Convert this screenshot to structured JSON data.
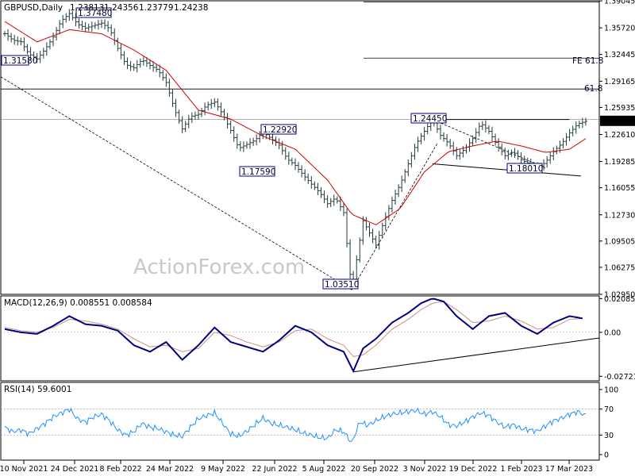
{
  "chart_data": [
    {
      "type": "line",
      "panel": "price",
      "title": "GBPUSD,Daily",
      "ohlc": [
        "1.23813",
        "1.24356",
        "1.23779",
        "1.24238"
      ],
      "last_price": "1.24238",
      "ylim": [
        1.0295,
        1.3905
      ],
      "y_ticks": [
        "1.39045",
        "1.35720",
        "1.32445",
        "1.29165",
        "1.25935",
        "1.22610",
        "1.19285",
        "1.16055",
        "1.12730",
        "1.09505",
        "1.06275",
        "1.02950"
      ],
      "x_ticks": [
        "10 Nov 2021",
        "24 Dec 2021",
        "8 Feb 2022",
        "24 Mar 2022",
        "9 May 2022",
        "22 Jun 2022",
        "5 Aug 2022",
        "20 Sep 2022",
        "3 Nov 2022",
        "19 Dec 2022",
        "1 Feb 2023",
        "17 Mar 2023"
      ],
      "price_series": [
        [
          0,
          1.35
        ],
        [
          5,
          1.342
        ],
        [
          10,
          1.34
        ],
        [
          15,
          1.325
        ],
        [
          20,
          1.319
        ],
        [
          25,
          1.331
        ],
        [
          30,
          1.346
        ],
        [
          35,
          1.366
        ],
        [
          40,
          1.3748
        ],
        [
          45,
          1.362
        ],
        [
          50,
          1.357
        ],
        [
          55,
          1.36
        ],
        [
          60,
          1.363
        ],
        [
          65,
          1.356
        ],
        [
          70,
          1.332
        ],
        [
          75,
          1.312
        ],
        [
          80,
          1.308
        ],
        [
          85,
          1.318
        ],
        [
          90,
          1.311
        ],
        [
          95,
          1.305
        ],
        [
          100,
          1.29
        ],
        [
          105,
          1.258
        ],
        [
          110,
          1.233
        ],
        [
          115,
          1.248
        ],
        [
          120,
          1.251
        ],
        [
          125,
          1.262
        ],
        [
          130,
          1.266
        ],
        [
          135,
          1.251
        ],
        [
          140,
          1.231
        ],
        [
          145,
          1.209
        ],
        [
          150,
          1.214
        ],
        [
          155,
          1.219
        ],
        [
          160,
          1.2292
        ],
        [
          165,
          1.221
        ],
        [
          170,
          1.213
        ],
        [
          175,
          1.196
        ],
        [
          180,
          1.188
        ],
        [
          185,
          1.176
        ],
        [
          190,
          1.165
        ],
        [
          195,
          1.155
        ],
        [
          200,
          1.141
        ],
        [
          205,
          1.148
        ],
        [
          210,
          1.13
        ],
        [
          215,
          1.0351
        ],
        [
          218,
          1.072
        ],
        [
          222,
          1.12
        ],
        [
          226,
          1.105
        ],
        [
          230,
          1.09
        ],
        [
          235,
          1.12
        ],
        [
          240,
          1.145
        ],
        [
          245,
          1.165
        ],
        [
          250,
          1.19
        ],
        [
          255,
          1.215
        ],
        [
          260,
          1.23
        ],
        [
          265,
          1.2445
        ],
        [
          270,
          1.225
        ],
        [
          275,
          1.215
        ],
        [
          280,
          1.2
        ],
        [
          285,
          1.208
        ],
        [
          290,
          1.221
        ],
        [
          295,
          1.24
        ],
        [
          300,
          1.23
        ],
        [
          305,
          1.213
        ],
        [
          310,
          1.2
        ],
        [
          315,
          1.205
        ],
        [
          320,
          1.195
        ],
        [
          325,
          1.19
        ],
        [
          330,
          1.184
        ],
        [
          335,
          1.192
        ],
        [
          340,
          1.205
        ],
        [
          345,
          1.215
        ],
        [
          350,
          1.228
        ],
        [
          355,
          1.239
        ],
        [
          360,
          1.2424
        ]
      ],
      "ma_series": [
        [
          0,
          1.365
        ],
        [
          20,
          1.34
        ],
        [
          40,
          1.355
        ],
        [
          60,
          1.35
        ],
        [
          80,
          1.33
        ],
        [
          100,
          1.305
        ],
        [
          120,
          1.256
        ],
        [
          140,
          1.245
        ],
        [
          160,
          1.224
        ],
        [
          180,
          1.208
        ],
        [
          200,
          1.17
        ],
        [
          215,
          1.128
        ],
        [
          230,
          1.115
        ],
        [
          245,
          1.135
        ],
        [
          260,
          1.18
        ],
        [
          275,
          1.205
        ],
        [
          290,
          1.212
        ],
        [
          305,
          1.218
        ],
        [
          320,
          1.212
        ],
        [
          335,
          1.204
        ],
        [
          350,
          1.208
        ],
        [
          360,
          1.221
        ]
      ],
      "annotations": [
        {
          "text": "1.37480",
          "x": 40,
          "y": 1.3748
        },
        {
          "text": "1.31580",
          "x": 0,
          "y": 1.3158
        },
        {
          "text": "1.22920",
          "x": 160,
          "y": 1.2292
        },
        {
          "text": "1.17590",
          "x": 148,
          "y": 1.1759
        },
        {
          "text": "1.03510",
          "x": 215,
          "y": 1.0351
        },
        {
          "text": "1.24450",
          "x": 265,
          "y": 1.2445
        },
        {
          "text": "1.18010",
          "x": 325,
          "y": 1.1801
        },
        {
          "text": "FE 61.8",
          "x": 360,
          "y": 1.32
        },
        {
          "text": "61.8",
          "x": 360,
          "y": 1.282
        }
      ],
      "watermark": "ActionForex.com"
    },
    {
      "type": "line",
      "panel": "macd",
      "title": "MACD(12,26,9) 0.008551 0.008584",
      "ylim": [
        -0.0295,
        0.0225
      ],
      "y_ticks": [
        "0.020858",
        "0.00",
        "-0.027213"
      ],
      "macd": [
        [
          0,
          0.002
        ],
        [
          10,
          0.0
        ],
        [
          20,
          -0.001
        ],
        [
          30,
          0.004
        ],
        [
          40,
          0.01
        ],
        [
          50,
          0.005
        ],
        [
          60,
          0.004
        ],
        [
          70,
          0.001
        ],
        [
          80,
          -0.008
        ],
        [
          90,
          -0.012
        ],
        [
          100,
          -0.006
        ],
        [
          110,
          -0.017
        ],
        [
          120,
          -0.008
        ],
        [
          130,
          0.003
        ],
        [
          140,
          -0.006
        ],
        [
          150,
          -0.009
        ],
        [
          160,
          -0.012
        ],
        [
          170,
          -0.005
        ],
        [
          180,
          0.004
        ],
        [
          190,
          0.0
        ],
        [
          200,
          -0.008
        ],
        [
          210,
          -0.012
        ],
        [
          216,
          -0.024
        ],
        [
          222,
          -0.01
        ],
        [
          230,
          -0.004
        ],
        [
          240,
          0.006
        ],
        [
          250,
          0.012
        ],
        [
          258,
          0.018
        ],
        [
          265,
          0.021
        ],
        [
          272,
          0.019
        ],
        [
          280,
          0.01
        ],
        [
          290,
          0.002
        ],
        [
          300,
          0.01
        ],
        [
          310,
          0.012
        ],
        [
          320,
          0.004
        ],
        [
          330,
          -0.001
        ],
        [
          340,
          0.006
        ],
        [
          350,
          0.01
        ],
        [
          358,
          0.0086
        ]
      ],
      "signal": [
        [
          0,
          0.003
        ],
        [
          10,
          0.001
        ],
        [
          20,
          0.0
        ],
        [
          30,
          0.003
        ],
        [
          40,
          0.008
        ],
        [
          50,
          0.007
        ],
        [
          60,
          0.005
        ],
        [
          70,
          0.002
        ],
        [
          80,
          -0.004
        ],
        [
          90,
          -0.009
        ],
        [
          100,
          -0.008
        ],
        [
          110,
          -0.012
        ],
        [
          120,
          -0.01
        ],
        [
          130,
          0.0
        ],
        [
          140,
          -0.002
        ],
        [
          150,
          -0.006
        ],
        [
          160,
          -0.009
        ],
        [
          170,
          -0.006
        ],
        [
          180,
          0.001
        ],
        [
          190,
          0.002
        ],
        [
          200,
          -0.004
        ],
        [
          210,
          -0.008
        ],
        [
          216,
          -0.015
        ],
        [
          222,
          -0.014
        ],
        [
          230,
          -0.008
        ],
        [
          240,
          0.002
        ],
        [
          250,
          0.008
        ],
        [
          258,
          0.014
        ],
        [
          265,
          0.018
        ],
        [
          272,
          0.019
        ],
        [
          280,
          0.014
        ],
        [
          290,
          0.006
        ],
        [
          300,
          0.007
        ],
        [
          310,
          0.01
        ],
        [
          320,
          0.007
        ],
        [
          330,
          0.002
        ],
        [
          340,
          0.003
        ],
        [
          350,
          0.008
        ],
        [
          358,
          0.0086
        ]
      ]
    },
    {
      "type": "line",
      "panel": "rsi",
      "title": "RSI(14) 59.6001",
      "ylim": [
        0,
        100
      ],
      "y_ticks": [
        "100",
        "70",
        "30",
        "0"
      ],
      "rsi": [
        [
          0,
          42
        ],
        [
          5,
          35
        ],
        [
          10,
          38
        ],
        [
          15,
          32
        ],
        [
          20,
          40
        ],
        [
          25,
          48
        ],
        [
          30,
          58
        ],
        [
          35,
          64
        ],
        [
          40,
          70
        ],
        [
          45,
          55
        ],
        [
          50,
          50
        ],
        [
          55,
          58
        ],
        [
          60,
          62
        ],
        [
          65,
          52
        ],
        [
          70,
          38
        ],
        [
          75,
          30
        ],
        [
          80,
          35
        ],
        [
          85,
          48
        ],
        [
          90,
          42
        ],
        [
          95,
          40
        ],
        [
          100,
          35
        ],
        [
          105,
          30
        ],
        [
          110,
          28
        ],
        [
          115,
          42
        ],
        [
          120,
          55
        ],
        [
          125,
          60
        ],
        [
          130,
          64
        ],
        [
          135,
          48
        ],
        [
          140,
          32
        ],
        [
          145,
          28
        ],
        [
          150,
          36
        ],
        [
          155,
          46
        ],
        [
          160,
          56
        ],
        [
          165,
          48
        ],
        [
          170,
          45
        ],
        [
          175,
          42
        ],
        [
          180,
          38
        ],
        [
          185,
          33
        ],
        [
          190,
          30
        ],
        [
          195,
          26
        ],
        [
          200,
          25
        ],
        [
          205,
          38
        ],
        [
          210,
          35
        ],
        [
          215,
          18
        ],
        [
          220,
          50
        ],
        [
          225,
          45
        ],
        [
          230,
          52
        ],
        [
          235,
          58
        ],
        [
          240,
          62
        ],
        [
          245,
          64
        ],
        [
          250,
          66
        ],
        [
          255,
          68
        ],
        [
          260,
          62
        ],
        [
          265,
          66
        ],
        [
          270,
          58
        ],
        [
          275,
          46
        ],
        [
          280,
          44
        ],
        [
          285,
          50
        ],
        [
          290,
          58
        ],
        [
          295,
          64
        ],
        [
          300,
          60
        ],
        [
          305,
          50
        ],
        [
          310,
          42
        ],
        [
          315,
          46
        ],
        [
          320,
          40
        ],
        [
          325,
          38
        ],
        [
          330,
          36
        ],
        [
          335,
          44
        ],
        [
          340,
          52
        ],
        [
          345,
          56
        ],
        [
          350,
          62
        ],
        [
          355,
          66
        ],
        [
          360,
          60
        ]
      ]
    }
  ]
}
